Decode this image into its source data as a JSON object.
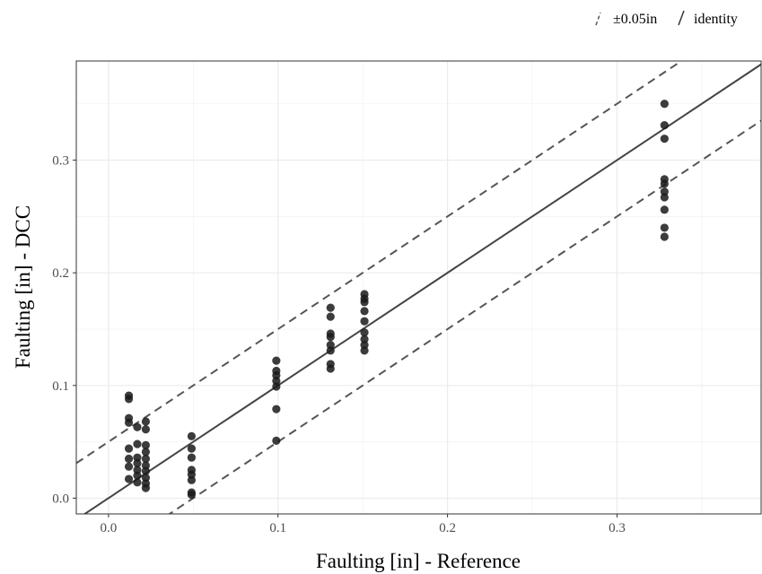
{
  "chart_data": {
    "type": "scatter",
    "xlabel": "Faulting [in] - Reference",
    "ylabel": "Faulting [in] - DCC",
    "xlim": [
      -0.019,
      0.385
    ],
    "ylim": [
      -0.014,
      0.388
    ],
    "x_ticks": [
      0.0,
      0.1,
      0.2,
      0.3
    ],
    "y_ticks": [
      0.0,
      0.1,
      0.2,
      0.3
    ],
    "x_tick_labels": [
      "0.0",
      "0.1",
      "0.2",
      "0.3"
    ],
    "y_tick_labels": [
      "0.0",
      "0.1",
      "0.2",
      "0.3"
    ],
    "grid": true,
    "legend_placement": "top-right",
    "legend": [
      {
        "label": "±0.05in",
        "style": "dashed"
      },
      {
        "label": "identity",
        "style": "solid"
      }
    ],
    "reference_lines": [
      {
        "name": "identity",
        "slope": 1,
        "intercept": 0,
        "style": "solid"
      },
      {
        "name": "upper",
        "slope": 1,
        "intercept": 0.05,
        "style": "dashed"
      },
      {
        "name": "lower",
        "slope": 1,
        "intercept": -0.05,
        "style": "dashed"
      }
    ],
    "points": [
      {
        "x": 0.012,
        "y": 0.091
      },
      {
        "x": 0.012,
        "y": 0.088
      },
      {
        "x": 0.012,
        "y": 0.071
      },
      {
        "x": 0.012,
        "y": 0.067
      },
      {
        "x": 0.012,
        "y": 0.044
      },
      {
        "x": 0.012,
        "y": 0.035
      },
      {
        "x": 0.012,
        "y": 0.028
      },
      {
        "x": 0.012,
        "y": 0.017
      },
      {
        "x": 0.017,
        "y": 0.063
      },
      {
        "x": 0.017,
        "y": 0.048
      },
      {
        "x": 0.017,
        "y": 0.036
      },
      {
        "x": 0.017,
        "y": 0.031
      },
      {
        "x": 0.017,
        "y": 0.025
      },
      {
        "x": 0.017,
        "y": 0.02
      },
      {
        "x": 0.017,
        "y": 0.014
      },
      {
        "x": 0.022,
        "y": 0.068
      },
      {
        "x": 0.022,
        "y": 0.061
      },
      {
        "x": 0.022,
        "y": 0.047
      },
      {
        "x": 0.022,
        "y": 0.041
      },
      {
        "x": 0.022,
        "y": 0.035
      },
      {
        "x": 0.022,
        "y": 0.029
      },
      {
        "x": 0.022,
        "y": 0.024
      },
      {
        "x": 0.022,
        "y": 0.018
      },
      {
        "x": 0.022,
        "y": 0.013
      },
      {
        "x": 0.022,
        "y": 0.009
      },
      {
        "x": 0.049,
        "y": 0.055
      },
      {
        "x": 0.049,
        "y": 0.044
      },
      {
        "x": 0.049,
        "y": 0.036
      },
      {
        "x": 0.049,
        "y": 0.025
      },
      {
        "x": 0.049,
        "y": 0.021
      },
      {
        "x": 0.049,
        "y": 0.016
      },
      {
        "x": 0.049,
        "y": 0.005
      },
      {
        "x": 0.049,
        "y": 0.003
      },
      {
        "x": 0.099,
        "y": 0.122
      },
      {
        "x": 0.099,
        "y": 0.113
      },
      {
        "x": 0.099,
        "y": 0.109
      },
      {
        "x": 0.099,
        "y": 0.104
      },
      {
        "x": 0.099,
        "y": 0.099
      },
      {
        "x": 0.099,
        "y": 0.079
      },
      {
        "x": 0.099,
        "y": 0.051
      },
      {
        "x": 0.131,
        "y": 0.169
      },
      {
        "x": 0.131,
        "y": 0.161
      },
      {
        "x": 0.131,
        "y": 0.146
      },
      {
        "x": 0.131,
        "y": 0.143
      },
      {
        "x": 0.131,
        "y": 0.136
      },
      {
        "x": 0.131,
        "y": 0.131
      },
      {
        "x": 0.131,
        "y": 0.119
      },
      {
        "x": 0.131,
        "y": 0.115
      },
      {
        "x": 0.151,
        "y": 0.181
      },
      {
        "x": 0.151,
        "y": 0.177
      },
      {
        "x": 0.151,
        "y": 0.174
      },
      {
        "x": 0.151,
        "y": 0.166
      },
      {
        "x": 0.151,
        "y": 0.157
      },
      {
        "x": 0.151,
        "y": 0.147
      },
      {
        "x": 0.151,
        "y": 0.141
      },
      {
        "x": 0.151,
        "y": 0.136
      },
      {
        "x": 0.151,
        "y": 0.131
      },
      {
        "x": 0.328,
        "y": 0.35
      },
      {
        "x": 0.328,
        "y": 0.331
      },
      {
        "x": 0.328,
        "y": 0.319
      },
      {
        "x": 0.328,
        "y": 0.283
      },
      {
        "x": 0.328,
        "y": 0.279
      },
      {
        "x": 0.328,
        "y": 0.272
      },
      {
        "x": 0.328,
        "y": 0.267
      },
      {
        "x": 0.328,
        "y": 0.256
      },
      {
        "x": 0.328,
        "y": 0.24
      },
      {
        "x": 0.328,
        "y": 0.232
      }
    ]
  }
}
